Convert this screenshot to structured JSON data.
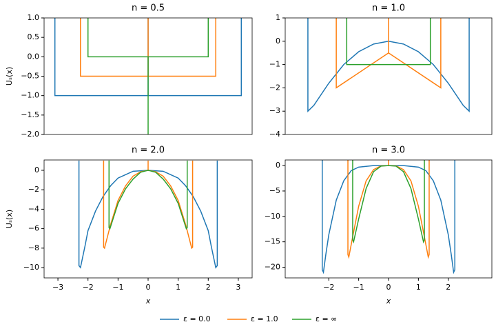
{
  "chart_data": [
    {
      "type": "line",
      "title": "n = 0.5",
      "ylabel": "Uₛ(x)",
      "xlim": [
        -3.46,
        3.46
      ],
      "ylim": [
        -2,
        1
      ],
      "yticks": [
        {
          "value": -2,
          "label": "−2.0"
        },
        {
          "value": -1.5,
          "label": "−1.5"
        },
        {
          "value": -1,
          "label": "−1.0"
        },
        {
          "value": -0.5,
          "label": "−0.5"
        },
        {
          "value": 0,
          "label": "0.0"
        },
        0.5,
        {
          "value": 1,
          "label": "1.0"
        }
      ],
      "series": [
        {
          "name": "ε = 0.0",
          "color": "#1f77b4",
          "x": [
            -3.1,
            -3.1,
            0,
            0,
            0,
            3.1,
            3.1
          ],
          "values": [
            1,
            -1,
            -1,
            1,
            -1,
            -1,
            1
          ]
        },
        {
          "name": "ε = 1.0",
          "color": "#ff7f0e",
          "x": [
            -2.25,
            -2.25,
            0,
            0,
            0,
            2.25,
            2.25
          ],
          "values": [
            1,
            -0.5,
            -0.5,
            1,
            -0.5,
            -0.5,
            1
          ]
        },
        {
          "name": "ε = ∞",
          "color": "#2ca02c",
          "x": [
            -2,
            -2,
            0,
            0,
            0,
            2,
            2
          ],
          "values": [
            1,
            0,
            0,
            -2,
            0,
            0,
            1
          ]
        }
      ]
    },
    {
      "type": "line",
      "title": "n = 1.0",
      "xlim": [
        -3.46,
        3.46
      ],
      "ylim": [
        -4,
        1
      ],
      "yticks": [
        {
          "value": -4,
          "label": "−4"
        },
        {
          "value": -3,
          "label": "−3"
        },
        {
          "value": -2,
          "label": "−2"
        },
        {
          "value": -1,
          "label": "−1"
        },
        0,
        1
      ],
      "series": [
        {
          "color": "#1f77b4",
          "x": [
            -2.7,
            -2.7,
            -2.5,
            -2.0,
            -1.5,
            -1.0,
            -0.5,
            0,
            0.5,
            1.0,
            1.5,
            2.0,
            2.5,
            2.7,
            2.7
          ],
          "values": [
            1,
            -3,
            -2.75,
            -1.8,
            -1.0,
            -0.45,
            -0.12,
            0,
            -0.12,
            -0.45,
            -1.0,
            -1.8,
            -2.75,
            -3,
            1
          ]
        },
        {
          "color": "#ff7f0e",
          "x": [
            -1.75,
            -1.75,
            0,
            0,
            0,
            1.75,
            1.75
          ],
          "values": [
            1,
            -2,
            -0.5,
            1,
            -0.5,
            -2,
            1
          ]
        },
        {
          "color": "#2ca02c",
          "x": [
            -1.4,
            -1.4,
            0,
            1.4,
            1.4
          ],
          "values": [
            1,
            -1,
            -1,
            -1,
            1
          ]
        }
      ]
    },
    {
      "type": "line",
      "title": "n = 2.0",
      "ylabel": "Uₛ(x)",
      "xlabel": "x",
      "xlim": [
        -3.46,
        3.46
      ],
      "ylim": [
        -11.06,
        1.06
      ],
      "xticks": [
        {
          "value": -3,
          "label": "−3"
        },
        {
          "value": -2,
          "label": "−2"
        },
        {
          "value": -1,
          "label": "−1"
        },
        0,
        1,
        2,
        3
      ],
      "yticks": [
        {
          "value": -10,
          "label": "−10"
        },
        {
          "value": -8,
          "label": "−8"
        },
        {
          "value": -6,
          "label": "−6"
        },
        {
          "value": -4,
          "label": "−4"
        },
        {
          "value": -2,
          "label": "−2"
        },
        0
      ],
      "series": [
        {
          "color": "#1f77b4",
          "x": [
            -2.3,
            -2.3,
            -2.25,
            -2.1,
            -2.0,
            -1.75,
            -1.5,
            -1.25,
            -1.0,
            -0.5,
            0,
            0.5,
            1.0,
            1.25,
            1.5,
            1.75,
            2.0,
            2.1,
            2.25,
            2.3,
            2.3
          ],
          "values": [
            1,
            -9.8,
            -10,
            -7.8,
            -6.2,
            -4.2,
            -2.7,
            -1.6,
            -0.8,
            -0.1,
            0,
            -0.1,
            -0.8,
            -1.6,
            -2.7,
            -4.2,
            -6.2,
            -7.8,
            -10,
            -9.8,
            1
          ]
        },
        {
          "color": "#ff7f0e",
          "x": [
            -1.48,
            -1.48,
            -1.45,
            -1.25,
            -1.0,
            -0.75,
            -0.5,
            -0.25,
            0,
            0,
            0,
            0.25,
            0.5,
            0.75,
            1.0,
            1.25,
            1.45,
            1.48,
            1.48
          ],
          "values": [
            1,
            -7.9,
            -8,
            -5.6,
            -3.1,
            -1.6,
            -0.6,
            -0.15,
            0,
            1,
            0,
            -0.15,
            -0.6,
            -1.6,
            -3.1,
            -5.6,
            -8,
            -7.9,
            1
          ]
        },
        {
          "color": "#2ca02c",
          "x": [
            -1.3,
            -1.3,
            -1.27,
            -1.0,
            -0.75,
            -0.5,
            -0.25,
            0,
            0.25,
            0.5,
            0.75,
            1.0,
            1.27,
            1.3,
            1.3
          ],
          "values": [
            1,
            -5.9,
            -6,
            -3.4,
            -1.9,
            -0.9,
            -0.2,
            0,
            -0.2,
            -0.9,
            -1.9,
            -3.4,
            -6,
            -5.9,
            1
          ]
        }
      ]
    },
    {
      "type": "line",
      "title": "n = 3.0",
      "xlabel": "x",
      "xlim": [
        -3.46,
        3.46
      ],
      "ylim": [
        -22.1,
        1.1
      ],
      "xticks": [
        {
          "value": -2,
          "label": "−2"
        },
        {
          "value": -1,
          "label": "−1"
        },
        0,
        1,
        2
      ],
      "yticks": [
        {
          "value": -20,
          "label": "−20"
        },
        {
          "value": -15,
          "label": "−15"
        },
        {
          "value": -10,
          "label": "−10"
        },
        {
          "value": -5,
          "label": "−5"
        },
        0
      ],
      "series": [
        {
          "color": "#1f77b4",
          "x": [
            -2.22,
            -2.22,
            -2.18,
            -2.1,
            -2.0,
            -1.75,
            -1.5,
            -1.25,
            -1.0,
            -0.5,
            0,
            0.5,
            1.0,
            1.25,
            1.5,
            1.75,
            2.0,
            2.1,
            2.18,
            2.22,
            2.22
          ],
          "values": [
            1.1,
            -20.5,
            -21,
            -17.5,
            -13.6,
            -6.8,
            -3,
            -1,
            -0.3,
            0,
            0,
            0,
            -0.3,
            -1,
            -3,
            -6.8,
            -13.6,
            -17.5,
            -21,
            -20.5,
            1.1
          ]
        },
        {
          "color": "#ff7f0e",
          "x": [
            -1.36,
            -1.36,
            -1.33,
            -1.2,
            -1.0,
            -0.75,
            -0.5,
            -0.25,
            0,
            0,
            0,
            0.25,
            0.5,
            0.75,
            1.0,
            1.2,
            1.33,
            1.36,
            1.36
          ],
          "values": [
            1.1,
            -17.5,
            -18,
            -14,
            -8,
            -3,
            -0.8,
            -0.05,
            0,
            1.1,
            0,
            -0.05,
            -0.8,
            -3,
            -8,
            -14,
            -18,
            -17.5,
            1.1
          ]
        },
        {
          "color": "#2ca02c",
          "x": [
            -1.2,
            -1.2,
            -1.17,
            -1.0,
            -0.75,
            -0.5,
            -0.25,
            0,
            0.25,
            0.5,
            0.75,
            1.0,
            1.17,
            1.2,
            1.2
          ],
          "values": [
            1.1,
            -14.6,
            -15,
            -10.5,
            -4.5,
            -1.2,
            -0.1,
            0,
            -0.1,
            -1.2,
            -4.5,
            -10.5,
            -15,
            -14.6,
            1.1
          ]
        }
      ]
    }
  ]
}
